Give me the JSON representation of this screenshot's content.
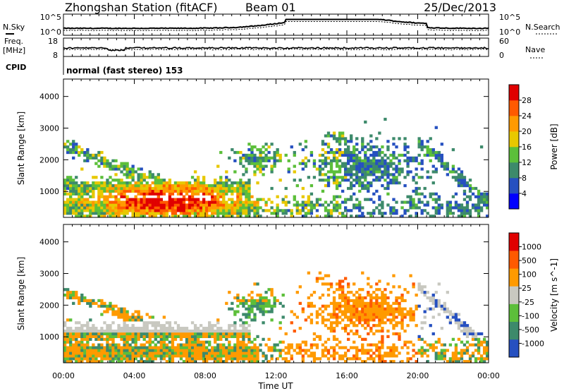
{
  "header": {
    "title": "Zhongshan Station (fitACF)",
    "beam": "Beam 01",
    "date": "25/Dec/2013"
  },
  "ops_panels": {
    "nsky_label": "N.Sky",
    "nsearch_label": "N.Search",
    "noise_ticks_left": [
      "10^5",
      "10^0"
    ],
    "noise_ticks_right": [
      "10^5",
      "10^0"
    ],
    "freq_label_1": "Freq.",
    "freq_label_2": "[MHz]",
    "freq_ticks": [
      "18",
      "8"
    ],
    "nave_label": "Nave",
    "nave_ticks": [
      "60",
      "0"
    ],
    "cpid_label": "CPID",
    "cpid_value": "normal (fast stereo) 153"
  },
  "colors": {
    "power": [
      "#0000ff",
      "#2650c0",
      "#3d8a6b",
      "#5cbf3a",
      "#e8c800",
      "#ff9a00",
      "#ff5a00",
      "#e00000"
    ],
    "velocity": [
      "#e00000",
      "#ff5a00",
      "#ff9a00",
      "#c8c8c0",
      "#5cbf3a",
      "#3d8a6b",
      "#2650c0"
    ]
  },
  "chart_data": [
    {
      "type": "heatmap",
      "name": "power",
      "ylabel": "Slant Range [km]",
      "ylim": [
        180,
        4550
      ],
      "yticks": [
        "1000",
        "2000",
        "3000",
        "4000"
      ],
      "xlim": [
        0,
        24
      ],
      "colorbar_label": "Power [dB]",
      "colorbar_ticks": [
        "4",
        "8",
        "12",
        "16",
        "20",
        "24",
        "28"
      ]
    },
    {
      "type": "heatmap",
      "name": "velocity",
      "ylabel": "Slant Range [km]",
      "ylim": [
        180,
        4550
      ],
      "yticks": [
        "1000",
        "2000",
        "3000",
        "4000"
      ],
      "xlim": [
        0,
        24
      ],
      "xlabel": "Time UT",
      "xticks": [
        "00:00",
        "04:00",
        "08:00",
        "12:00",
        "16:00",
        "20:00",
        "00:00"
      ],
      "colorbar_label": "Velocity [m s^-1]",
      "colorbar_ticks": [
        "1000",
        "500",
        "100",
        "25",
        "-25",
        "-100",
        "-500",
        "-1000"
      ]
    }
  ]
}
